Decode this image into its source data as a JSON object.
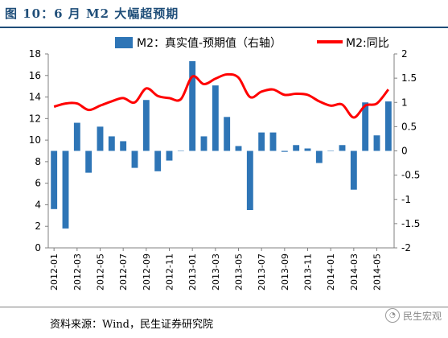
{
  "figure": {
    "title": "图 10：6 月 M2 大幅超预期",
    "source": "资料来源：Wind，民生证券研究院",
    "watermark": "民生宏观",
    "watermark_icon": "wechat-icon"
  },
  "chart_data": {
    "type": "bar+line",
    "legend": [
      "M2：真实值-预期值（右轴）",
      "M2:同比"
    ],
    "legend_placement": "top",
    "colors": {
      "bar": "#2e75b6",
      "line": "#ff0000",
      "title": "#1f4e79"
    },
    "x_tick_labels": [
      "2012-01",
      "2012-03",
      "2012-05",
      "2012-07",
      "2012-09",
      "2012-11",
      "2013-01",
      "2013-03",
      "2013-05",
      "2013-07",
      "2013-09",
      "2013-11",
      "2014-01",
      "2014-03",
      "2014-05"
    ],
    "categories": [
      "2012-01",
      "2012-02",
      "2012-03",
      "2012-04",
      "2012-05",
      "2012-06",
      "2012-07",
      "2012-08",
      "2012-09",
      "2012-10",
      "2012-11",
      "2012-12",
      "2013-01",
      "2013-02",
      "2013-03",
      "2013-04",
      "2013-05",
      "2013-06",
      "2013-07",
      "2013-08",
      "2013-09",
      "2013-10",
      "2013-11",
      "2013-12",
      "2014-01",
      "2014-02",
      "2014-03",
      "2014-04",
      "2014-05",
      "2014-06"
    ],
    "series": [
      {
        "name": "M2：真实值-预期值（右轴）",
        "axis": "right",
        "type": "bar",
        "values": [
          -1.2,
          -1.6,
          0.58,
          -0.45,
          0.5,
          0.3,
          0.2,
          -0.35,
          1.05,
          -0.42,
          -0.2,
          0.0,
          1.85,
          0.3,
          1.35,
          0.7,
          0.1,
          -1.22,
          0.38,
          0.38,
          -0.02,
          0.12,
          0.05,
          -0.25,
          0.0,
          0.12,
          -0.8,
          1.0,
          0.32,
          1.02
        ]
      },
      {
        "name": "M2:同比",
        "axis": "left",
        "type": "line",
        "values": [
          13.1,
          13.4,
          13.4,
          12.8,
          13.2,
          13.6,
          13.9,
          13.5,
          14.8,
          14.1,
          13.9,
          13.8,
          15.9,
          15.2,
          15.7,
          16.1,
          15.8,
          14.0,
          14.5,
          14.7,
          14.2,
          14.3,
          14.2,
          13.6,
          13.2,
          13.3,
          12.1,
          13.2,
          13.4,
          14.7
        ]
      }
    ],
    "y_left": {
      "ylim": [
        0,
        18
      ],
      "ticks": [
        0,
        2,
        4,
        6,
        8,
        10,
        12,
        14,
        16,
        18
      ]
    },
    "y_right": {
      "ylim": [
        -2,
        2
      ],
      "ticks": [
        -2,
        -1.5,
        -1,
        -0.5,
        0,
        0.5,
        1,
        1.5,
        2
      ],
      "tick_labels": [
        "-2",
        "-1.5",
        "-1",
        "-0.5",
        "0",
        "0.5",
        "1",
        "1.5",
        "2"
      ]
    },
    "grid": false
  }
}
